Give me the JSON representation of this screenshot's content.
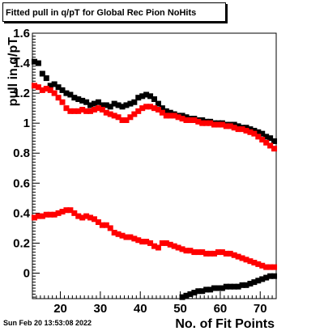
{
  "title": "Fitted pull in q/pT for Global Rec Pion NoHits",
  "timestamp": "Sun Feb 20 13:53:08 2022",
  "colors": {
    "series1": "#000000",
    "series2": "#ff0000"
  },
  "chart_data": {
    "type": "scatter",
    "title": "Fitted pull in q/pT for Global Rec Pion NoHits",
    "xlabel": "No. of Fit Points",
    "ylabel": "pull in q/pT",
    "xlim": [
      13,
      74
    ],
    "ylim": [
      -0.17,
      1.6
    ],
    "xticks": [
      20,
      30,
      40,
      50,
      60,
      70
    ],
    "xtick_labels": [
      "20",
      "30",
      "40",
      "50",
      "60",
      "70"
    ],
    "yticks": [
      0,
      0.2,
      0.4,
      0.6,
      0.8,
      1,
      1.2,
      1.4,
      1.6
    ],
    "ytick_labels": [
      "0",
      "0.2",
      "0.4",
      "0.6",
      "0.8",
      "1",
      "1.2",
      "1.4",
      "1.6"
    ],
    "grid": false,
    "series": [
      {
        "color": "#000000",
        "points": [
          [
            13.5,
            1.41
          ],
          [
            14.5,
            1.4
          ],
          [
            15.5,
            1.33
          ],
          [
            16.5,
            1.3
          ],
          [
            17.5,
            1.25
          ],
          [
            18.5,
            1.26
          ],
          [
            19.5,
            1.24
          ],
          [
            20.5,
            1.22
          ],
          [
            21.5,
            1.2
          ],
          [
            22.5,
            1.19
          ],
          [
            23.5,
            1.17
          ],
          [
            24.5,
            1.16
          ],
          [
            25.5,
            1.15
          ],
          [
            26.5,
            1.14
          ],
          [
            27.5,
            1.12
          ],
          [
            28.5,
            1.13
          ],
          [
            29.5,
            1.14
          ],
          [
            30.5,
            1.12
          ],
          [
            31.5,
            1.12
          ],
          [
            32.5,
            1.11
          ],
          [
            33.5,
            1.13
          ],
          [
            34.5,
            1.12
          ],
          [
            35.5,
            1.11
          ],
          [
            36.5,
            1.12
          ],
          [
            37.5,
            1.13
          ],
          [
            38.5,
            1.14
          ],
          [
            39.5,
            1.17
          ],
          [
            40.5,
            1.18
          ],
          [
            41.5,
            1.19
          ],
          [
            42.5,
            1.18
          ],
          [
            43.5,
            1.16
          ],
          [
            44.5,
            1.13
          ],
          [
            45.5,
            1.1
          ],
          [
            46.5,
            1.08
          ],
          [
            47.5,
            1.07
          ],
          [
            48.5,
            1.06
          ],
          [
            49.5,
            1.05
          ],
          [
            50.5,
            1.05
          ],
          [
            51.5,
            1.04
          ],
          [
            52.5,
            1.03
          ],
          [
            53.5,
            1.03
          ],
          [
            54.5,
            1.02
          ],
          [
            55.5,
            1.02
          ],
          [
            56.5,
            1.01
          ],
          [
            57.5,
            1.01
          ],
          [
            58.5,
            1.0
          ],
          [
            59.5,
            1.0
          ],
          [
            60.5,
            1.0
          ],
          [
            61.5,
            0.99
          ],
          [
            62.5,
            0.99
          ],
          [
            63.5,
            0.99
          ],
          [
            64.5,
            0.98
          ],
          [
            65.5,
            0.97
          ],
          [
            66.5,
            0.97
          ],
          [
            67.5,
            0.96
          ],
          [
            68.5,
            0.95
          ],
          [
            69.5,
            0.94
          ],
          [
            70.5,
            0.93
          ],
          [
            71.5,
            0.91
          ],
          [
            72.5,
            0.9
          ],
          [
            73.5,
            0.88
          ],
          [
            50.5,
            -0.16
          ],
          [
            51.5,
            -0.15
          ],
          [
            52.5,
            -0.14
          ],
          [
            53.5,
            -0.13
          ],
          [
            54.5,
            -0.12
          ],
          [
            55.5,
            -0.12
          ],
          [
            56.5,
            -0.11
          ],
          [
            57.5,
            -0.11
          ],
          [
            58.5,
            -0.1
          ],
          [
            59.5,
            -0.1
          ],
          [
            60.5,
            -0.1
          ],
          [
            61.5,
            -0.09
          ],
          [
            62.5,
            -0.09
          ],
          [
            63.5,
            -0.09
          ],
          [
            64.5,
            -0.09
          ],
          [
            65.5,
            -0.08
          ],
          [
            66.5,
            -0.08
          ],
          [
            67.5,
            -0.07
          ],
          [
            68.5,
            -0.06
          ],
          [
            69.5,
            -0.05
          ],
          [
            70.5,
            -0.04
          ],
          [
            71.5,
            -0.03
          ],
          [
            72.5,
            -0.02
          ],
          [
            73.5,
            -0.02
          ]
        ]
      },
      {
        "color": "#ff0000",
        "points": [
          [
            13.5,
            1.25
          ],
          [
            14.5,
            1.24
          ],
          [
            15.5,
            1.22
          ],
          [
            16.5,
            1.23
          ],
          [
            17.5,
            1.22
          ],
          [
            18.5,
            1.2
          ],
          [
            19.5,
            1.17
          ],
          [
            20.5,
            1.14
          ],
          [
            21.5,
            1.1
          ],
          [
            22.5,
            1.08
          ],
          [
            23.5,
            1.08
          ],
          [
            24.5,
            1.08
          ],
          [
            25.5,
            1.09
          ],
          [
            26.5,
            1.08
          ],
          [
            27.5,
            1.08
          ],
          [
            28.5,
            1.09
          ],
          [
            29.5,
            1.1
          ],
          [
            30.5,
            1.09
          ],
          [
            31.5,
            1.07
          ],
          [
            32.5,
            1.06
          ],
          [
            33.5,
            1.05
          ],
          [
            34.5,
            1.04
          ],
          [
            35.5,
            1.02
          ],
          [
            36.5,
            1.02
          ],
          [
            37.5,
            1.04
          ],
          [
            38.5,
            1.06
          ],
          [
            39.5,
            1.08
          ],
          [
            40.5,
            1.1
          ],
          [
            41.5,
            1.11
          ],
          [
            42.5,
            1.11
          ],
          [
            43.5,
            1.1
          ],
          [
            44.5,
            1.09
          ],
          [
            45.5,
            1.07
          ],
          [
            46.5,
            1.05
          ],
          [
            47.5,
            1.05
          ],
          [
            48.5,
            1.05
          ],
          [
            49.5,
            1.04
          ],
          [
            50.5,
            1.03
          ],
          [
            51.5,
            1.02
          ],
          [
            52.5,
            1.02
          ],
          [
            53.5,
            1.02
          ],
          [
            54.5,
            1.01
          ],
          [
            55.5,
            1.0
          ],
          [
            56.5,
            1.0
          ],
          [
            57.5,
            1.0
          ],
          [
            58.5,
            0.99
          ],
          [
            59.5,
            0.99
          ],
          [
            60.5,
            0.99
          ],
          [
            61.5,
            0.98
          ],
          [
            62.5,
            0.98
          ],
          [
            63.5,
            0.97
          ],
          [
            64.5,
            0.96
          ],
          [
            65.5,
            0.96
          ],
          [
            66.5,
            0.95
          ],
          [
            67.5,
            0.94
          ],
          [
            68.5,
            0.93
          ],
          [
            69.5,
            0.91
          ],
          [
            70.5,
            0.89
          ],
          [
            71.5,
            0.87
          ],
          [
            72.5,
            0.85
          ],
          [
            73.5,
            0.83
          ],
          [
            13.5,
            0.37
          ],
          [
            14.5,
            0.38
          ],
          [
            15.5,
            0.38
          ],
          [
            16.5,
            0.39
          ],
          [
            17.5,
            0.39
          ],
          [
            18.5,
            0.39
          ],
          [
            19.5,
            0.4
          ],
          [
            20.5,
            0.41
          ],
          [
            21.5,
            0.42
          ],
          [
            22.5,
            0.42
          ],
          [
            23.5,
            0.4
          ],
          [
            24.5,
            0.38
          ],
          [
            25.5,
            0.37
          ],
          [
            26.5,
            0.38
          ],
          [
            27.5,
            0.37
          ],
          [
            28.5,
            0.36
          ],
          [
            29.5,
            0.34
          ],
          [
            30.5,
            0.32
          ],
          [
            31.5,
            0.32
          ],
          [
            32.5,
            0.3
          ],
          [
            33.5,
            0.27
          ],
          [
            34.5,
            0.26
          ],
          [
            35.5,
            0.25
          ],
          [
            36.5,
            0.24
          ],
          [
            37.5,
            0.24
          ],
          [
            38.5,
            0.23
          ],
          [
            39.5,
            0.22
          ],
          [
            40.5,
            0.21
          ],
          [
            41.5,
            0.21
          ],
          [
            42.5,
            0.2
          ],
          [
            43.5,
            0.18
          ],
          [
            44.5,
            0.17
          ],
          [
            45.5,
            0.2
          ],
          [
            46.5,
            0.2
          ],
          [
            47.5,
            0.19
          ],
          [
            48.5,
            0.18
          ],
          [
            49.5,
            0.17
          ],
          [
            50.5,
            0.16
          ],
          [
            51.5,
            0.15
          ],
          [
            52.5,
            0.15
          ],
          [
            53.5,
            0.14
          ],
          [
            54.5,
            0.14
          ],
          [
            55.5,
            0.14
          ],
          [
            56.5,
            0.13
          ],
          [
            57.5,
            0.13
          ],
          [
            58.5,
            0.13
          ],
          [
            59.5,
            0.14
          ],
          [
            60.5,
            0.14
          ],
          [
            61.5,
            0.13
          ],
          [
            62.5,
            0.13
          ],
          [
            63.5,
            0.12
          ],
          [
            64.5,
            0.11
          ],
          [
            65.5,
            0.1
          ],
          [
            66.5,
            0.09
          ],
          [
            67.5,
            0.08
          ],
          [
            68.5,
            0.07
          ],
          [
            69.5,
            0.06
          ],
          [
            70.5,
            0.05
          ],
          [
            71.5,
            0.04
          ],
          [
            72.5,
            0.04
          ],
          [
            73.5,
            0.04
          ]
        ]
      }
    ]
  }
}
